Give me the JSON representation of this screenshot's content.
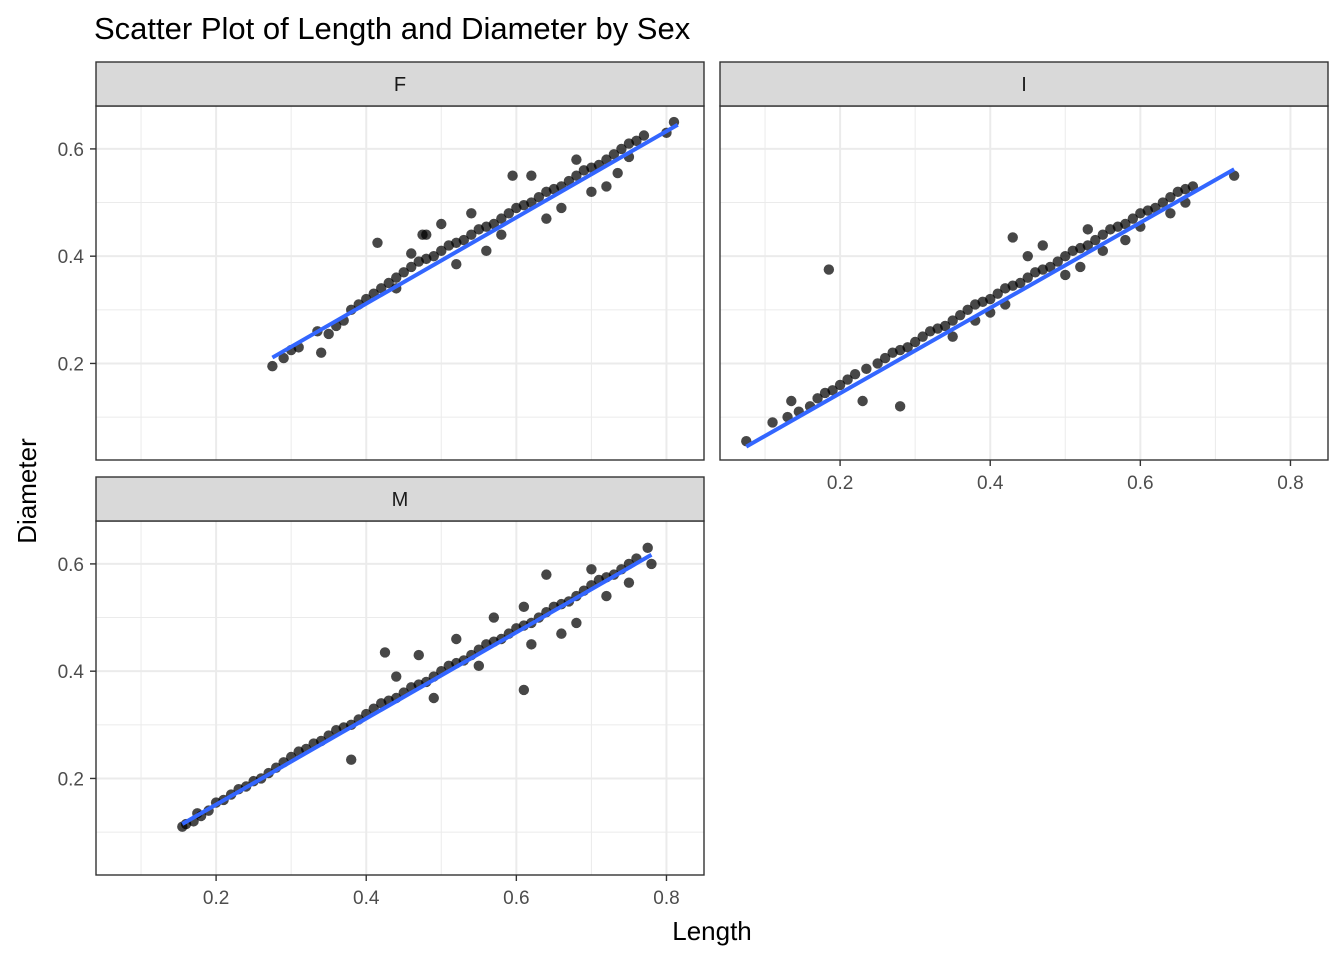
{
  "chart_data": {
    "type": "scatter",
    "title": "Scatter Plot of Length and Diameter by Sex",
    "xlabel": "Length",
    "ylabel": "Diameter",
    "xlim": [
      0.04,
      0.85
    ],
    "ylim": [
      0.02,
      0.68
    ],
    "x_ticks": [
      "0.2",
      "0.4",
      "0.6",
      "0.8"
    ],
    "y_ticks": [
      "0.2",
      "0.4",
      "0.6"
    ],
    "grid": true,
    "colors": {
      "point": "#000000",
      "trend_line": "#3366FF",
      "strip_bg": "#D9D9D9",
      "panel_border": "#333333",
      "grid_major": "#EBEBEB"
    },
    "panels": [
      {
        "label": "F",
        "trend": {
          "x0": 0.275,
          "y0": 0.211,
          "x1": 0.815,
          "y1": 0.645
        },
        "points": [
          [
            0.275,
            0.195
          ],
          [
            0.29,
            0.21
          ],
          [
            0.3,
            0.225
          ],
          [
            0.31,
            0.23
          ],
          [
            0.335,
            0.26
          ],
          [
            0.34,
            0.22
          ],
          [
            0.35,
            0.255
          ],
          [
            0.36,
            0.27
          ],
          [
            0.37,
            0.28
          ],
          [
            0.38,
            0.3
          ],
          [
            0.39,
            0.31
          ],
          [
            0.4,
            0.32
          ],
          [
            0.41,
            0.33
          ],
          [
            0.415,
            0.425
          ],
          [
            0.42,
            0.34
          ],
          [
            0.43,
            0.35
          ],
          [
            0.44,
            0.36
          ],
          [
            0.45,
            0.37
          ],
          [
            0.46,
            0.38
          ],
          [
            0.47,
            0.39
          ],
          [
            0.475,
            0.44
          ],
          [
            0.48,
            0.395
          ],
          [
            0.49,
            0.4
          ],
          [
            0.5,
            0.41
          ],
          [
            0.51,
            0.42
          ],
          [
            0.52,
            0.425
          ],
          [
            0.53,
            0.43
          ],
          [
            0.54,
            0.44
          ],
          [
            0.55,
            0.45
          ],
          [
            0.56,
            0.455
          ],
          [
            0.57,
            0.46
          ],
          [
            0.58,
            0.47
          ],
          [
            0.59,
            0.48
          ],
          [
            0.6,
            0.49
          ],
          [
            0.61,
            0.495
          ],
          [
            0.62,
            0.5
          ],
          [
            0.63,
            0.51
          ],
          [
            0.64,
            0.52
          ],
          [
            0.65,
            0.525
          ],
          [
            0.66,
            0.53
          ],
          [
            0.67,
            0.54
          ],
          [
            0.68,
            0.55
          ],
          [
            0.69,
            0.56
          ],
          [
            0.7,
            0.565
          ],
          [
            0.71,
            0.57
          ],
          [
            0.72,
            0.58
          ],
          [
            0.73,
            0.59
          ],
          [
            0.74,
            0.6
          ],
          [
            0.75,
            0.61
          ],
          [
            0.76,
            0.615
          ],
          [
            0.77,
            0.625
          ],
          [
            0.8,
            0.63
          ],
          [
            0.81,
            0.65
          ],
          [
            0.44,
            0.34
          ],
          [
            0.5,
            0.46
          ],
          [
            0.56,
            0.41
          ],
          [
            0.62,
            0.55
          ],
          [
            0.66,
            0.49
          ],
          [
            0.72,
            0.53
          ],
          [
            0.75,
            0.585
          ],
          [
            0.54,
            0.48
          ],
          [
            0.58,
            0.44
          ],
          [
            0.64,
            0.47
          ],
          [
            0.68,
            0.58
          ],
          [
            0.595,
            0.55
          ],
          [
            0.48,
            0.44
          ],
          [
            0.52,
            0.385
          ],
          [
            0.46,
            0.405
          ],
          [
            0.7,
            0.52
          ],
          [
            0.735,
            0.555
          ]
        ]
      },
      {
        "label": "I",
        "trend": {
          "x0": 0.075,
          "y0": 0.045,
          "x1": 0.725,
          "y1": 0.562
        },
        "points": [
          [
            0.075,
            0.055
          ],
          [
            0.11,
            0.09
          ],
          [
            0.13,
            0.1
          ],
          [
            0.135,
            0.13
          ],
          [
            0.145,
            0.11
          ],
          [
            0.16,
            0.12
          ],
          [
            0.17,
            0.135
          ],
          [
            0.18,
            0.145
          ],
          [
            0.185,
            0.375
          ],
          [
            0.19,
            0.15
          ],
          [
            0.2,
            0.16
          ],
          [
            0.21,
            0.17
          ],
          [
            0.22,
            0.18
          ],
          [
            0.23,
            0.13
          ],
          [
            0.235,
            0.19
          ],
          [
            0.25,
            0.2
          ],
          [
            0.26,
            0.21
          ],
          [
            0.27,
            0.22
          ],
          [
            0.28,
            0.12
          ],
          [
            0.28,
            0.225
          ],
          [
            0.29,
            0.23
          ],
          [
            0.3,
            0.24
          ],
          [
            0.31,
            0.25
          ],
          [
            0.32,
            0.26
          ],
          [
            0.33,
            0.265
          ],
          [
            0.34,
            0.27
          ],
          [
            0.35,
            0.28
          ],
          [
            0.36,
            0.29
          ],
          [
            0.37,
            0.3
          ],
          [
            0.38,
            0.31
          ],
          [
            0.39,
            0.315
          ],
          [
            0.4,
            0.32
          ],
          [
            0.41,
            0.33
          ],
          [
            0.42,
            0.34
          ],
          [
            0.43,
            0.345
          ],
          [
            0.43,
            0.435
          ],
          [
            0.44,
            0.35
          ],
          [
            0.45,
            0.36
          ],
          [
            0.46,
            0.37
          ],
          [
            0.47,
            0.375
          ],
          [
            0.48,
            0.38
          ],
          [
            0.49,
            0.39
          ],
          [
            0.5,
            0.4
          ],
          [
            0.51,
            0.41
          ],
          [
            0.52,
            0.415
          ],
          [
            0.53,
            0.42
          ],
          [
            0.54,
            0.43
          ],
          [
            0.55,
            0.44
          ],
          [
            0.56,
            0.45
          ],
          [
            0.57,
            0.455
          ],
          [
            0.58,
            0.46
          ],
          [
            0.59,
            0.47
          ],
          [
            0.6,
            0.48
          ],
          [
            0.61,
            0.485
          ],
          [
            0.62,
            0.49
          ],
          [
            0.63,
            0.5
          ],
          [
            0.64,
            0.51
          ],
          [
            0.65,
            0.52
          ],
          [
            0.66,
            0.525
          ],
          [
            0.67,
            0.53
          ],
          [
            0.725,
            0.55
          ],
          [
            0.4,
            0.295
          ],
          [
            0.45,
            0.4
          ],
          [
            0.5,
            0.365
          ],
          [
            0.55,
            0.41
          ],
          [
            0.6,
            0.455
          ],
          [
            0.35,
            0.25
          ],
          [
            0.47,
            0.42
          ],
          [
            0.53,
            0.45
          ],
          [
            0.58,
            0.43
          ],
          [
            0.64,
            0.48
          ],
          [
            0.42,
            0.31
          ],
          [
            0.38,
            0.28
          ],
          [
            0.52,
            0.38
          ],
          [
            0.66,
            0.5
          ]
        ]
      },
      {
        "label": "M",
        "trend": {
          "x0": 0.155,
          "y0": 0.115,
          "x1": 0.78,
          "y1": 0.617
        },
        "points": [
          [
            0.155,
            0.11
          ],
          [
            0.16,
            0.115
          ],
          [
            0.17,
            0.12
          ],
          [
            0.175,
            0.135
          ],
          [
            0.18,
            0.13
          ],
          [
            0.19,
            0.14
          ],
          [
            0.2,
            0.155
          ],
          [
            0.21,
            0.16
          ],
          [
            0.22,
            0.17
          ],
          [
            0.23,
            0.18
          ],
          [
            0.24,
            0.185
          ],
          [
            0.25,
            0.195
          ],
          [
            0.26,
            0.2
          ],
          [
            0.27,
            0.21
          ],
          [
            0.28,
            0.22
          ],
          [
            0.29,
            0.23
          ],
          [
            0.3,
            0.24
          ],
          [
            0.31,
            0.25
          ],
          [
            0.32,
            0.255
          ],
          [
            0.33,
            0.265
          ],
          [
            0.34,
            0.27
          ],
          [
            0.35,
            0.28
          ],
          [
            0.36,
            0.29
          ],
          [
            0.37,
            0.295
          ],
          [
            0.38,
            0.235
          ],
          [
            0.38,
            0.3
          ],
          [
            0.39,
            0.31
          ],
          [
            0.4,
            0.32
          ],
          [
            0.41,
            0.33
          ],
          [
            0.42,
            0.34
          ],
          [
            0.43,
            0.345
          ],
          [
            0.44,
            0.35
          ],
          [
            0.45,
            0.36
          ],
          [
            0.46,
            0.37
          ],
          [
            0.47,
            0.375
          ],
          [
            0.48,
            0.38
          ],
          [
            0.49,
            0.39
          ],
          [
            0.5,
            0.4
          ],
          [
            0.51,
            0.41
          ],
          [
            0.52,
            0.415
          ],
          [
            0.53,
            0.42
          ],
          [
            0.54,
            0.43
          ],
          [
            0.55,
            0.44
          ],
          [
            0.56,
            0.45
          ],
          [
            0.57,
            0.455
          ],
          [
            0.58,
            0.46
          ],
          [
            0.59,
            0.47
          ],
          [
            0.6,
            0.48
          ],
          [
            0.61,
            0.365
          ],
          [
            0.61,
            0.485
          ],
          [
            0.62,
            0.49
          ],
          [
            0.63,
            0.5
          ],
          [
            0.64,
            0.51
          ],
          [
            0.65,
            0.52
          ],
          [
            0.66,
            0.525
          ],
          [
            0.67,
            0.53
          ],
          [
            0.68,
            0.54
          ],
          [
            0.69,
            0.55
          ],
          [
            0.7,
            0.56
          ],
          [
            0.71,
            0.57
          ],
          [
            0.72,
            0.575
          ],
          [
            0.73,
            0.58
          ],
          [
            0.74,
            0.59
          ],
          [
            0.75,
            0.6
          ],
          [
            0.76,
            0.61
          ],
          [
            0.775,
            0.63
          ],
          [
            0.78,
            0.6
          ],
          [
            0.425,
            0.435
          ],
          [
            0.47,
            0.43
          ],
          [
            0.52,
            0.46
          ],
          [
            0.57,
            0.5
          ],
          [
            0.61,
            0.52
          ],
          [
            0.64,
            0.58
          ],
          [
            0.66,
            0.47
          ],
          [
            0.72,
            0.54
          ],
          [
            0.75,
            0.565
          ],
          [
            0.55,
            0.41
          ],
          [
            0.62,
            0.45
          ],
          [
            0.68,
            0.49
          ],
          [
            0.49,
            0.35
          ],
          [
            0.44,
            0.39
          ],
          [
            0.7,
            0.59
          ]
        ]
      }
    ]
  }
}
